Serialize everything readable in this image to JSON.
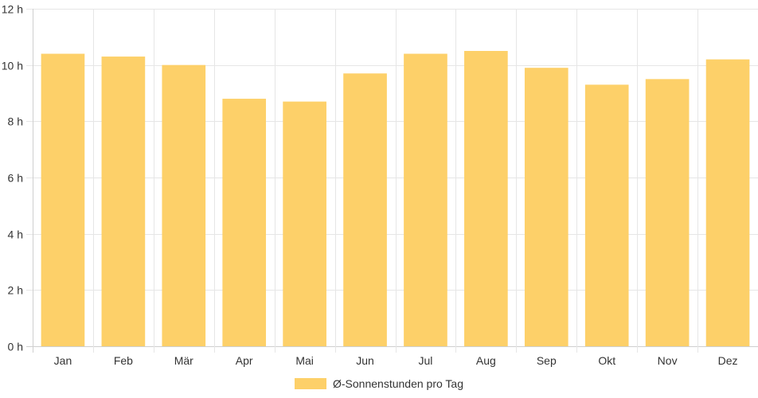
{
  "chart_data": {
    "type": "bar",
    "categories": [
      "Jan",
      "Feb",
      "Mär",
      "Apr",
      "Mai",
      "Jun",
      "Jul",
      "Aug",
      "Sep",
      "Okt",
      "Nov",
      "Dez"
    ],
    "series": [
      {
        "name": "Ø-Sonnenstunden pro Tag",
        "values": [
          10.4,
          10.3,
          10.0,
          8.8,
          8.7,
          9.7,
          10.4,
          10.5,
          9.9,
          9.3,
          9.5,
          10.2
        ],
        "color": "#fdd069"
      }
    ],
    "ylim": [
      0,
      12
    ],
    "yticks": [
      "0 h",
      "2 h",
      "4 h",
      "6 h",
      "8 h",
      "10 h",
      "12 h"
    ],
    "grid": true,
    "legend_position": "bottom",
    "colors": {
      "bar": "#fdd069",
      "grid": "#e6e6e6",
      "axis": "#cfcfcf",
      "text": "#333333"
    }
  }
}
